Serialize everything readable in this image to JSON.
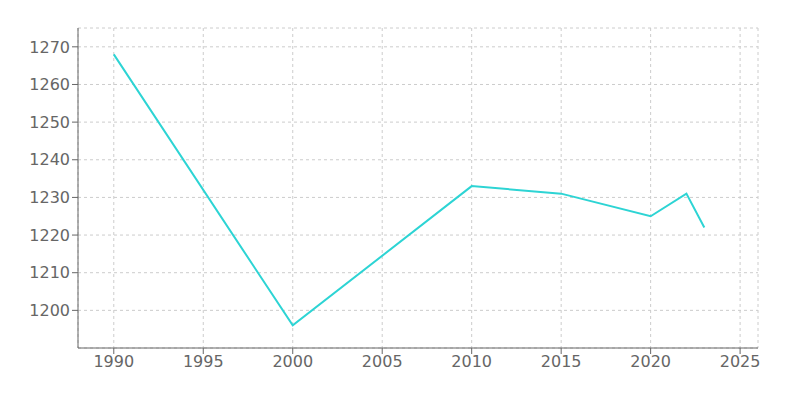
{
  "chart_data": {
    "type": "line",
    "x": [
      1990,
      2000,
      2010,
      2015,
      2020,
      2022,
      2023
    ],
    "values": [
      1268,
      1196,
      1233,
      1231,
      1225,
      1231,
      1222
    ],
    "color": "#2dd4d4",
    "xlim": [
      1988,
      2026
    ],
    "ylim": [
      1190,
      1275
    ],
    "xticks": [
      1990,
      1995,
      2000,
      2005,
      2010,
      2015,
      2020,
      2025
    ],
    "yticks": [
      1200,
      1210,
      1220,
      1230,
      1240,
      1250,
      1260,
      1270
    ],
    "grid": true
  }
}
